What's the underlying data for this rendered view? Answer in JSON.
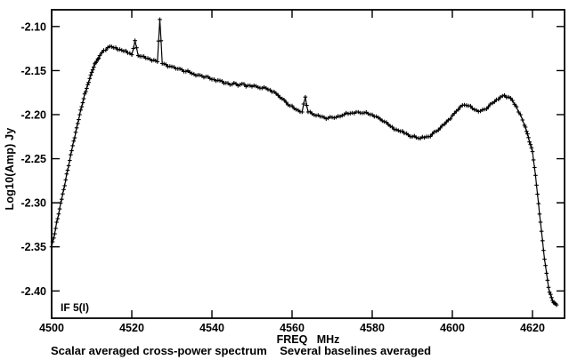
{
  "figure": {
    "background": "#ffffff",
    "ink_color": "#000000"
  },
  "chart_data": {
    "type": "line",
    "title": "",
    "xlabel": "FREQ   MHz",
    "ylabel": "Log10(Amp) Jy",
    "annotation": "IF 5(I)",
    "caption": "Scalar averaged cross-power spectrum    Several baselines averaged",
    "xlim": [
      4500,
      4628
    ],
    "ylim": [
      -2.431,
      -2.081
    ],
    "x_ticks": [
      4500,
      4520,
      4540,
      4560,
      4580,
      4600,
      4620
    ],
    "y_ticks": [
      -2.1,
      -2.15,
      -2.2,
      -2.25,
      -2.3,
      -2.35,
      -2.4
    ],
    "grid": false,
    "legend": false,
    "marker": "plus",
    "line_color": "#000000",
    "noise_amplitude": 0.0015,
    "series": [
      {
        "name": "scalar averaged cross-power spectrum",
        "points": [
          [
            4500,
            -2.35
          ],
          [
            4500.5,
            -2.34
          ],
          [
            4501,
            -2.329
          ],
          [
            4501.5,
            -2.318
          ],
          [
            4502,
            -2.307
          ],
          [
            4502.5,
            -2.296
          ],
          [
            4503,
            -2.285
          ],
          [
            4503.5,
            -2.274
          ],
          [
            4504,
            -2.263
          ],
          [
            4504.5,
            -2.252
          ],
          [
            4505,
            -2.241
          ],
          [
            4505.5,
            -2.23
          ],
          [
            4506,
            -2.22
          ],
          [
            4506.5,
            -2.21
          ],
          [
            4507,
            -2.2
          ],
          [
            4507.5,
            -2.191
          ],
          [
            4508,
            -2.182
          ],
          [
            4508.5,
            -2.174
          ],
          [
            4509,
            -2.166
          ],
          [
            4509.5,
            -2.159
          ],
          [
            4510,
            -2.152
          ],
          [
            4510.5,
            -2.146
          ],
          [
            4511,
            -2.141
          ],
          [
            4511.5,
            -2.137
          ],
          [
            4512,
            -2.133
          ],
          [
            4513,
            -2.127
          ],
          [
            4514,
            -2.124
          ],
          [
            4515,
            -2.123
          ],
          [
            4516,
            -2.124
          ],
          [
            4517,
            -2.126
          ],
          [
            4518,
            -2.128
          ],
          [
            4519,
            -2.13
          ],
          [
            4520,
            -2.132
          ],
          [
            4520.8,
            -2.116
          ],
          [
            4521.6,
            -2.133
          ],
          [
            4522.5,
            -2.134
          ],
          [
            4523.5,
            -2.136
          ],
          [
            4524.5,
            -2.137
          ],
          [
            4525.5,
            -2.138
          ],
          [
            4526.4,
            -2.14
          ],
          [
            4527,
            -2.092
          ],
          [
            4527.6,
            -2.142
          ],
          [
            4528.5,
            -2.143
          ],
          [
            4529.5,
            -2.145
          ],
          [
            4530.5,
            -2.146
          ],
          [
            4531.5,
            -2.148
          ],
          [
            4532.5,
            -2.149
          ],
          [
            4533.5,
            -2.151
          ],
          [
            4534.5,
            -2.152
          ],
          [
            4535.5,
            -2.154
          ],
          [
            4536.5,
            -2.155
          ],
          [
            4537.5,
            -2.156
          ],
          [
            4538.5,
            -2.157
          ],
          [
            4539.5,
            -2.159
          ],
          [
            4540.5,
            -2.16
          ],
          [
            4541.5,
            -2.161
          ],
          [
            4542.5,
            -2.162
          ],
          [
            4543.5,
            -2.164
          ],
          [
            4544.5,
            -2.166
          ],
          [
            4545.5,
            -2.164
          ],
          [
            4546.5,
            -2.167
          ],
          [
            4547.5,
            -2.165
          ],
          [
            4548.5,
            -2.168
          ],
          [
            4549.5,
            -2.167
          ],
          [
            4550.5,
            -2.167
          ],
          [
            4551.5,
            -2.169
          ],
          [
            4552.5,
            -2.17
          ],
          [
            4553.5,
            -2.17
          ],
          [
            4554.5,
            -2.172
          ],
          [
            4555.5,
            -2.174
          ],
          [
            4556.5,
            -2.178
          ],
          [
            4557.5,
            -2.182
          ],
          [
            4558.5,
            -2.186
          ],
          [
            4559.5,
            -2.19
          ],
          [
            4560.5,
            -2.193
          ],
          [
            4561.5,
            -2.195
          ],
          [
            4562.5,
            -2.197
          ],
          [
            4563.3,
            -2.18
          ],
          [
            4564,
            -2.197
          ],
          [
            4565,
            -2.199
          ],
          [
            4566,
            -2.201
          ],
          [
            4567,
            -2.202
          ],
          [
            4568,
            -2.203
          ],
          [
            4569,
            -2.204
          ],
          [
            4570,
            -2.203
          ],
          [
            4571,
            -2.203
          ],
          [
            4572,
            -2.202
          ],
          [
            4573,
            -2.2
          ],
          [
            4574,
            -2.199
          ],
          [
            4575,
            -2.198
          ],
          [
            4576,
            -2.197
          ],
          [
            4577,
            -2.198
          ],
          [
            4578,
            -2.198
          ],
          [
            4579,
            -2.199
          ],
          [
            4580,
            -2.2
          ],
          [
            4581,
            -2.202
          ],
          [
            4582,
            -2.205
          ],
          [
            4583,
            -2.208
          ],
          [
            4584,
            -2.211
          ],
          [
            4585,
            -2.214
          ],
          [
            4586,
            -2.217
          ],
          [
            4587,
            -2.219
          ],
          [
            4588,
            -2.221
          ],
          [
            4589,
            -2.223
          ],
          [
            4590,
            -2.225
          ],
          [
            4591,
            -2.226
          ],
          [
            4592,
            -2.227
          ],
          [
            4593,
            -2.226
          ],
          [
            4594,
            -2.225
          ],
          [
            4595,
            -2.222
          ],
          [
            4596,
            -2.219
          ],
          [
            4597,
            -2.215
          ],
          [
            4598,
            -2.211
          ],
          [
            4599,
            -2.206
          ],
          [
            4600,
            -2.201
          ],
          [
            4601,
            -2.196
          ],
          [
            4602,
            -2.191
          ],
          [
            4603,
            -2.189
          ],
          [
            4604,
            -2.19
          ],
          [
            4605,
            -2.193
          ],
          [
            4606,
            -2.195
          ],
          [
            4607,
            -2.196
          ],
          [
            4608,
            -2.194
          ],
          [
            4609,
            -2.191
          ],
          [
            4610,
            -2.187
          ],
          [
            4611,
            -2.183
          ],
          [
            4612,
            -2.18
          ],
          [
            4613,
            -2.178
          ],
          [
            4614,
            -2.18
          ],
          [
            4615,
            -2.184
          ],
          [
            4616,
            -2.191
          ],
          [
            4617,
            -2.2
          ],
          [
            4618,
            -2.212
          ],
          [
            4618.5,
            -2.219
          ],
          [
            4619,
            -2.226
          ],
          [
            4619.5,
            -2.234
          ],
          [
            4620,
            -2.242
          ],
          [
            4620.5,
            -2.26
          ],
          [
            4621,
            -2.28
          ],
          [
            4621.5,
            -2.301
          ],
          [
            4622,
            -2.322
          ],
          [
            4622.5,
            -2.343
          ],
          [
            4623,
            -2.364
          ],
          [
            4623.5,
            -2.38
          ],
          [
            4624,
            -2.396
          ],
          [
            4624.5,
            -2.404
          ],
          [
            4625,
            -2.411
          ],
          [
            4625.5,
            -2.414
          ],
          [
            4626,
            -2.416
          ]
        ]
      }
    ]
  }
}
